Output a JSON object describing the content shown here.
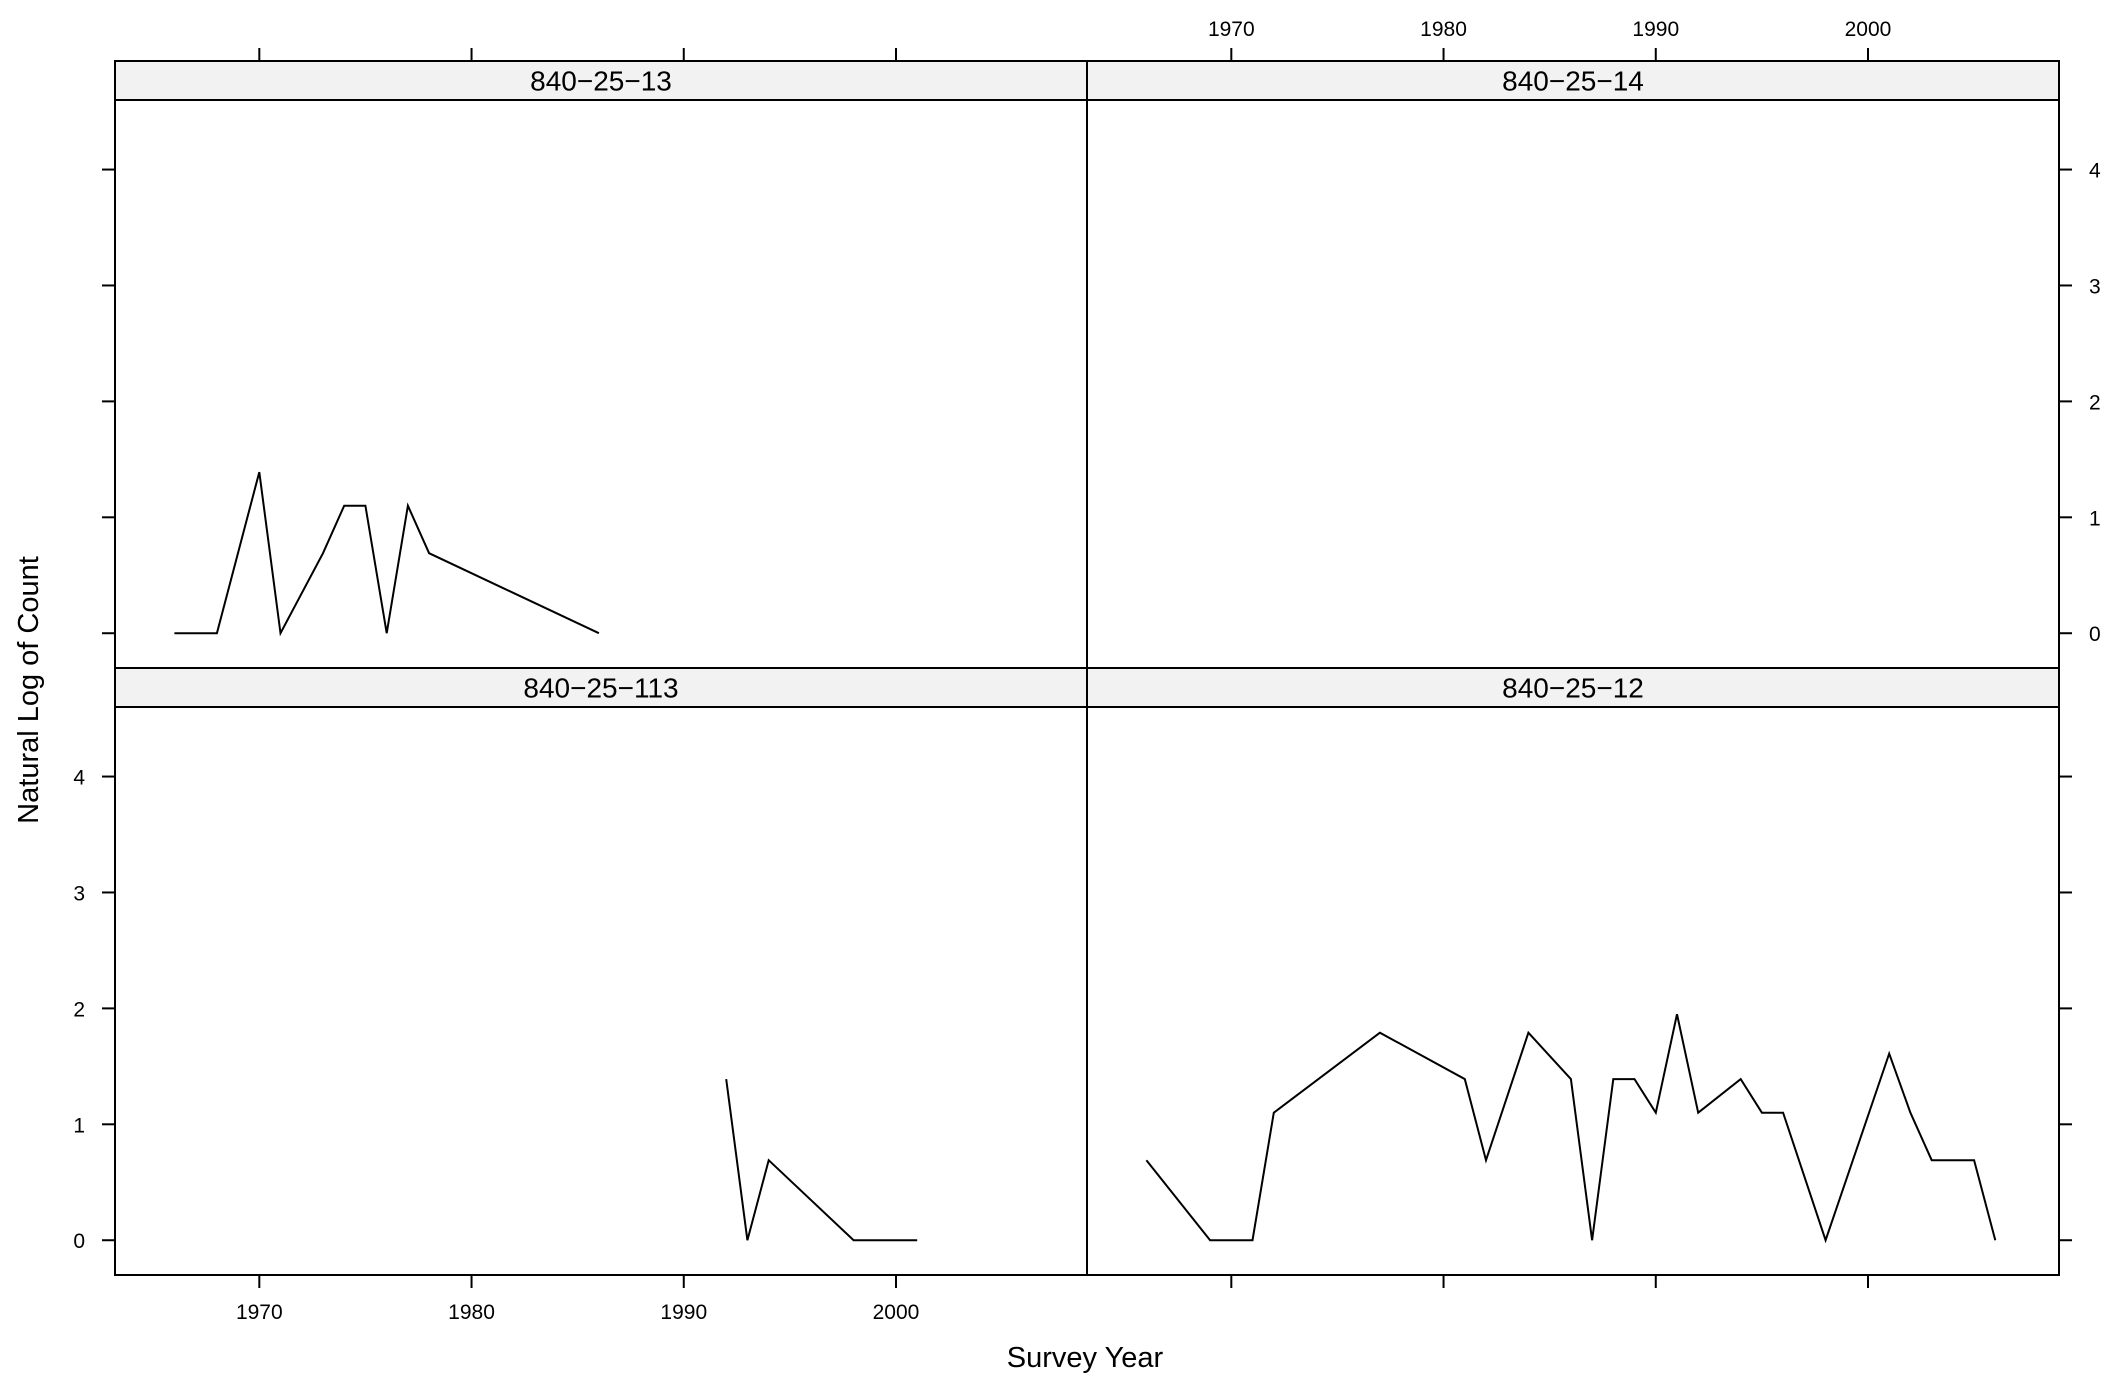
{
  "chart_data": {
    "type": "line",
    "xlabel": "Survey Year",
    "ylabel": "Natural Log of Count",
    "xlim": [
      1963.2,
      2009.0
    ],
    "ylim": [
      -0.3,
      4.6
    ],
    "x_ticks": [
      1970,
      1980,
      1990,
      2000
    ],
    "y_ticks": [
      0,
      1,
      2,
      3,
      4
    ],
    "layout": "2x2 lattice, shared axes, strip labels on top of each panel",
    "panels": [
      {
        "title": "840−25−13",
        "row": "top",
        "col": "left",
        "x": [
          1966,
          1968,
          1970,
          1971,
          1973,
          1974,
          1975,
          1976,
          1977,
          1978,
          1986
        ],
        "y": [
          0,
          0,
          1.39,
          0,
          0.69,
          1.1,
          1.1,
          0,
          1.1,
          0.69,
          0
        ]
      },
      {
        "title": "840−25−14",
        "row": "top",
        "col": "right",
        "x": [],
        "y": []
      },
      {
        "title": "840−25−113",
        "row": "bottom",
        "col": "left",
        "x": [
          1992,
          1993,
          1994,
          1998,
          2001
        ],
        "y": [
          1.39,
          0,
          0.69,
          0,
          0
        ]
      },
      {
        "title": "840−25−12",
        "row": "bottom",
        "col": "right",
        "x": [
          1966,
          1969,
          1971,
          1972,
          1977,
          1981,
          1982,
          1984,
          1986,
          1987,
          1988,
          1989,
          1990,
          1991,
          1992,
          1994,
          1995,
          1996,
          1998,
          2001,
          2002,
          2003,
          2005,
          2006
        ],
        "y": [
          0.69,
          0,
          0,
          1.1,
          1.79,
          1.39,
          0.69,
          1.79,
          1.39,
          0,
          1.39,
          1.39,
          1.1,
          1.95,
          1.1,
          1.39,
          1.1,
          1.1,
          0,
          1.61,
          1.1,
          0.69,
          0.69,
          0
        ]
      }
    ]
  }
}
